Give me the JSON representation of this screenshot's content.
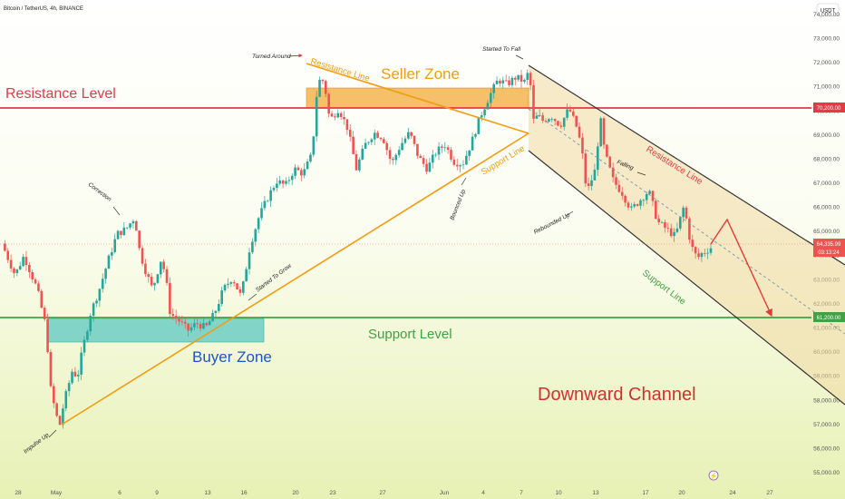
{
  "header": {
    "symbol_line": "Bitcoin / TetherUS, 4h, BINANCE",
    "currency_button": "USDT"
  },
  "colors": {
    "up": "#26a69a",
    "down": "#ef5350",
    "resistance": "#e53945",
    "support": "#43a047",
    "orange": "#f39c12",
    "buyer_zone": "#5ec8c2",
    "seller_zone": "#f3a93a",
    "channel_fill": "#f0d9a3",
    "channel_lines": "#333333",
    "title_red": "#d32f2f",
    "buyer_text": "#1e55c8",
    "bg_top": "#ffffff",
    "bg_bottom": "#e7f1b4"
  },
  "chart_data": {
    "type": "candlestick",
    "timeframe": "4h",
    "ylim": [
      54400,
      74600
    ],
    "y_ticks": [
      "74,000.00",
      "73,000.00",
      "72,000.00",
      "71,000.00",
      "70,000.00",
      "69,000.00",
      "68,000.00",
      "67,000.00",
      "66,000.00",
      "65,000.00",
      "64,000.00",
      "63,000.00",
      "62,000.00",
      "61,000.00",
      "60,000.00",
      "59,000.00",
      "58,000.00",
      "57,000.00",
      "56,000.00",
      "55,000.00"
    ],
    "x_ticks": [
      "28",
      "May",
      "6",
      "9",
      "13",
      "16",
      "20",
      "23",
      "27",
      "Jun",
      "4",
      "7",
      "10",
      "13",
      "17",
      "20",
      "24",
      "27"
    ],
    "price_path": [
      [
        0,
        64500
      ],
      [
        3,
        63200
      ],
      [
        5,
        64000
      ],
      [
        8,
        62600
      ],
      [
        10,
        61000
      ],
      [
        11,
        58500
      ],
      [
        12,
        57600
      ],
      [
        13,
        56900
      ],
      [
        14,
        57900
      ],
      [
        16,
        59300
      ],
      [
        17,
        58900
      ],
      [
        18,
        59900
      ],
      [
        20,
        61600
      ],
      [
        22,
        62600
      ],
      [
        24,
        63800
      ],
      [
        26,
        64900
      ],
      [
        28,
        65100
      ],
      [
        30,
        65600
      ],
      [
        31,
        64300
      ],
      [
        32,
        63600
      ],
      [
        34,
        62600
      ],
      [
        36,
        63900
      ],
      [
        37,
        63100
      ],
      [
        38,
        61600
      ],
      [
        40,
        61300
      ],
      [
        42,
        60900
      ],
      [
        44,
        61200
      ],
      [
        46,
        61000
      ],
      [
        48,
        61600
      ],
      [
        50,
        62600
      ],
      [
        52,
        63100
      ],
      [
        54,
        62300
      ],
      [
        56,
        64400
      ],
      [
        58,
        65600
      ],
      [
        60,
        66400
      ],
      [
        62,
        67100
      ],
      [
        64,
        66900
      ],
      [
        66,
        67600
      ],
      [
        68,
        67400
      ],
      [
        70,
        68200
      ],
      [
        71,
        70600
      ],
      [
        72,
        71500
      ],
      [
        73,
        70900
      ],
      [
        74,
        69600
      ],
      [
        76,
        70100
      ],
      [
        78,
        69300
      ],
      [
        80,
        67600
      ],
      [
        82,
        68600
      ],
      [
        84,
        69100
      ],
      [
        86,
        68900
      ],
      [
        88,
        67800
      ],
      [
        90,
        68600
      ],
      [
        92,
        69100
      ],
      [
        94,
        68100
      ],
      [
        96,
        67600
      ],
      [
        98,
        68300
      ],
      [
        100,
        68600
      ],
      [
        102,
        67900
      ],
      [
        104,
        67800
      ],
      [
        106,
        68700
      ],
      [
        108,
        69800
      ],
      [
        110,
        70600
      ],
      [
        112,
        71300
      ],
      [
        114,
        71100
      ],
      [
        116,
        71400
      ],
      [
        118,
        71200
      ],
      [
        119,
        71700
      ],
      [
        120,
        69600
      ],
      [
        121,
        69800
      ],
      [
        122,
        69600
      ],
      [
        124,
        69800
      ],
      [
        126,
        69400
      ],
      [
        128,
        70100
      ],
      [
        130,
        69200
      ],
      [
        131,
        68200
      ],
      [
        132,
        66600
      ],
      [
        134,
        67600
      ],
      [
        135,
        69800
      ],
      [
        136,
        68300
      ],
      [
        138,
        67100
      ],
      [
        140,
        66600
      ],
      [
        142,
        65900
      ],
      [
        144,
        66300
      ],
      [
        146,
        66700
      ],
      [
        148,
        65400
      ],
      [
        150,
        65100
      ],
      [
        152,
        64800
      ],
      [
        154,
        66100
      ],
      [
        155,
        64900
      ],
      [
        156,
        64200
      ],
      [
        157,
        63900
      ],
      [
        158,
        64100
      ],
      [
        159,
        64200
      ],
      [
        160,
        64336
      ]
    ],
    "price_labels": [
      {
        "text": "70,200.00",
        "value": 70200,
        "kind": "resistance"
      },
      {
        "text": "64,335.99",
        "value": 64336,
        "kind": "current"
      },
      {
        "text": "03:13:24",
        "kind": "countdown"
      },
      {
        "text": "61,200.00",
        "value": 61200,
        "kind": "support"
      }
    ],
    "levels": [
      {
        "name": "Resistance Level",
        "value": 70200
      },
      {
        "name": "Support Level",
        "value": 61200
      }
    ],
    "zones": [
      {
        "name": "Seller Zone",
        "y0": 70100,
        "y1": 71000
      },
      {
        "name": "Buyer Zone",
        "y0": 60200,
        "y1": 61600
      }
    ],
    "channel": {
      "name": "Downward Channel",
      "upper_label": "Resistance Line",
      "lower_label": "Support Line"
    },
    "triangle": {
      "upper_label": "Resistance Line",
      "lower_label": "Support Line"
    },
    "annotations": [
      "Turned Around",
      "Started To Fall",
      "Correction",
      "Impulse Up",
      "Started To Grow",
      "Bounced Up",
      "Rebounded Up",
      "Falling"
    ]
  },
  "labels": {
    "resistance_level": "Resistance Level",
    "support_level": "Support Level",
    "seller_zone": "Seller Zone",
    "buyer_zone": "Buyer Zone",
    "downward_channel": "Downward Channel",
    "triangle_resistance": "Resistance Line",
    "triangle_support": "Support Line",
    "channel_resistance": "Resistance Line",
    "channel_support": "Support Line",
    "turned_around": "Turned Around",
    "started_to_fall": "Started To Fall",
    "correction": "Correction",
    "impulse_up": "Impulse Up",
    "started_to_grow": "Started To Grow",
    "bounced_up": "Bounced Up",
    "rebounded_up": "Rebounded Up",
    "falling": "Falling"
  },
  "axis_labels": {
    "y": [
      "74,000.00",
      "73,000.00",
      "72,000.00",
      "71,000.00",
      "70,000.00",
      "69,000.00",
      "68,000.00",
      "67,000.00",
      "66,000.00",
      "65,000.00",
      "64,000.00",
      "63,000.00",
      "62,000.00",
      "61,000.00",
      "60,000.00",
      "59,000.00",
      "58,000.00",
      "57,000.00",
      "56,000.00",
      "55,000.00"
    ],
    "x": [
      "28",
      "May",
      "6",
      "9",
      "13",
      "16",
      "20",
      "23",
      "27",
      "Jun",
      "4",
      "7",
      "10",
      "13",
      "17",
      "20",
      "24",
      "27"
    ]
  }
}
